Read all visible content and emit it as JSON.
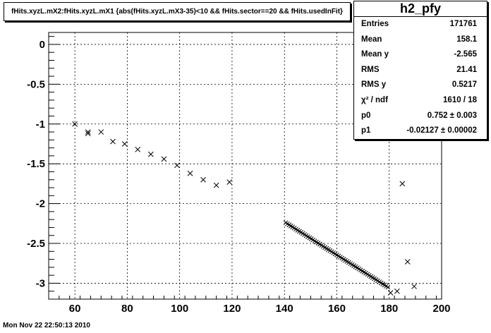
{
  "title": "fHits.xyzL.mX2:fHits.xyzL.mX1 {abs(fHits.xyzL.mX3-35)<10 && fHits.sector==20 && fHits.usedInFit}",
  "timestamp": "Mon Nov 22 22:50:13 2010",
  "stats": {
    "name": "h2_pfy",
    "rows": [
      {
        "label": "Entries",
        "value": "171761"
      },
      {
        "label": "Mean",
        "value": "158.1"
      },
      {
        "label": "Mean y",
        "value": "-2.565"
      },
      {
        "label": "RMS",
        "value": "21.41"
      },
      {
        "label": "RMS y",
        "value": "0.5217"
      },
      {
        "label": "χ² / ndf",
        "value": "1610 / 18"
      },
      {
        "label": "p0",
        "value": "0.752 ± 0.003"
      },
      {
        "label": "p1",
        "value": "-0.02127 ± 0.00002"
      }
    ]
  },
  "chart_data": {
    "type": "scatter",
    "marker": "x",
    "xlim": [
      50,
      200
    ],
    "ylim": [
      -3.2,
      0.15
    ],
    "xticks": [
      60,
      80,
      100,
      120,
      140,
      160,
      180,
      200
    ],
    "yticks": [
      0,
      -0.5,
      -1,
      -1.5,
      -2,
      -2.5,
      -3
    ],
    "xtick_labels": [
      "60",
      "80",
      "100",
      "120",
      "140",
      "160",
      "180",
      "200"
    ],
    "ytick_labels": [
      "0",
      "-0.5",
      "-1",
      "-1.5",
      "-2",
      "-2.5",
      "-3"
    ],
    "grid": true,
    "points": [
      [
        60,
        -1.0
      ],
      [
        65,
        -1.12
      ],
      [
        65,
        -1.1
      ],
      [
        70,
        -1.1
      ],
      [
        74.5,
        -1.22
      ],
      [
        79,
        -1.25
      ],
      [
        84,
        -1.32
      ],
      [
        89,
        -1.38
      ],
      [
        94,
        -1.44
      ],
      [
        99,
        -1.52
      ],
      [
        104,
        -1.62
      ],
      [
        109,
        -1.7
      ],
      [
        114,
        -1.77
      ],
      [
        119,
        -1.73
      ],
      [
        180.5,
        -3.12
      ],
      [
        183,
        -3.1
      ],
      [
        185,
        -1.75
      ],
      [
        187,
        -2.73
      ],
      [
        189.5,
        -3.04
      ]
    ],
    "dense_segment": {
      "x": [
        140.5,
        179.5
      ],
      "y": [
        -2.24,
        -3.05
      ]
    },
    "colors": {
      "axis": "#000000",
      "grid": "#000000",
      "marker": "#000000"
    }
  }
}
